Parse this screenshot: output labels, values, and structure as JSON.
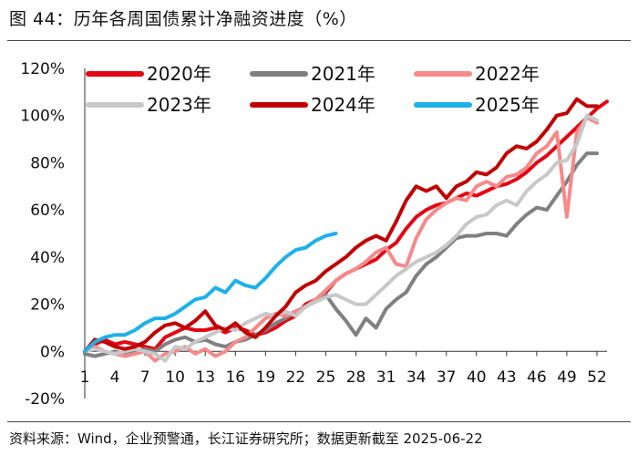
{
  "header": {
    "title": "图 44：历年各周国债累计净融资进度（%）"
  },
  "footer": {
    "source": "资料来源：Wind，企业预警通，长江证券研究所；数据更新截至 2025-06-22"
  },
  "chart_data": {
    "type": "line",
    "title": "历年各周国债累计净融资进度（%）",
    "xlabel": "",
    "ylabel": "",
    "xlim": [
      1,
      53
    ],
    "ylim": [
      -20,
      120
    ],
    "x_ticks": [
      1,
      4,
      7,
      10,
      13,
      16,
      19,
      22,
      25,
      28,
      31,
      34,
      37,
      40,
      43,
      46,
      49,
      52
    ],
    "y_ticks": [
      -20,
      0,
      20,
      40,
      60,
      80,
      100,
      120
    ],
    "y_tick_labels": [
      "-20%",
      "0%",
      "20%",
      "40%",
      "60%",
      "80%",
      "100%",
      "120%"
    ],
    "legend_placement": "top",
    "series": [
      {
        "name": "2020年",
        "color": "#E30613",
        "width": 4,
        "x": [
          1,
          2,
          3,
          4,
          5,
          6,
          7,
          8,
          9,
          10,
          11,
          12,
          13,
          14,
          15,
          16,
          17,
          18,
          19,
          20,
          21,
          22,
          23,
          24,
          25,
          26,
          27,
          28,
          29,
          30,
          31,
          32,
          33,
          34,
          35,
          36,
          37,
          38,
          39,
          40,
          41,
          42,
          43,
          44,
          45,
          46,
          47,
          48,
          49,
          50,
          51,
          52,
          53
        ],
        "values": [
          0,
          3,
          5,
          3,
          4,
          3,
          2,
          1,
          6,
          8,
          10,
          9,
          9,
          10,
          8,
          10,
          9,
          7,
          8,
          10,
          13,
          15,
          20,
          22,
          25,
          30,
          33,
          35,
          37,
          39,
          43,
          46,
          52,
          57,
          60,
          62,
          63,
          65,
          67,
          66,
          68,
          70,
          71,
          73,
          76,
          80,
          83,
          87,
          91,
          95,
          99,
          103,
          106
        ]
      },
      {
        "name": "2021年",
        "color": "#808080",
        "width": 4,
        "x": [
          1,
          2,
          3,
          4,
          5,
          6,
          7,
          8,
          9,
          10,
          11,
          12,
          13,
          14,
          15,
          16,
          17,
          18,
          19,
          20,
          21,
          22,
          23,
          24,
          25,
          26,
          27,
          28,
          29,
          30,
          31,
          32,
          33,
          34,
          35,
          36,
          37,
          38,
          39,
          40,
          41,
          42,
          43,
          44,
          45,
          46,
          47,
          48,
          49,
          50,
          51,
          52
        ],
        "values": [
          -1,
          -2,
          -1,
          0,
          -1,
          0,
          1,
          0,
          3,
          5,
          6,
          4,
          5,
          3,
          2,
          4,
          5,
          7,
          9,
          12,
          14,
          17,
          19,
          22,
          24,
          18,
          13,
          7,
          14,
          10,
          18,
          22,
          25,
          32,
          37,
          40,
          44,
          48,
          49,
          49,
          50,
          50,
          49,
          54,
          58,
          61,
          60,
          66,
          72,
          79,
          84,
          84
        ]
      },
      {
        "name": "2022年",
        "color": "#F58A8A",
        "width": 4,
        "x": [
          1,
          2,
          3,
          4,
          5,
          6,
          7,
          8,
          9,
          10,
          11,
          12,
          13,
          14,
          15,
          16,
          17,
          18,
          19,
          20,
          21,
          22,
          23,
          24,
          25,
          26,
          27,
          28,
          29,
          30,
          31,
          32,
          33,
          34,
          35,
          36,
          37,
          38,
          39,
          40,
          41,
          42,
          43,
          44,
          45,
          46,
          47,
          48,
          49,
          50,
          51,
          52
        ],
        "values": [
          0,
          2,
          0,
          -1,
          -2,
          -1,
          0,
          -4,
          -1,
          0,
          2,
          -1,
          1,
          -2,
          0,
          4,
          6,
          10,
          14,
          16,
          15,
          17,
          19,
          22,
          26,
          30,
          33,
          35,
          38,
          42,
          44,
          37,
          36,
          48,
          56,
          60,
          63,
          65,
          64,
          70,
          72,
          70,
          74,
          75,
          78,
          84,
          87,
          93,
          57,
          93,
          99,
          97
        ]
      },
      {
        "name": "2023年",
        "color": "#C8C8C8",
        "width": 4,
        "x": [
          1,
          2,
          3,
          4,
          5,
          6,
          7,
          8,
          9,
          10,
          11,
          12,
          13,
          14,
          15,
          16,
          17,
          18,
          19,
          20,
          21,
          22,
          23,
          24,
          25,
          26,
          27,
          28,
          29,
          30,
          31,
          32,
          33,
          34,
          35,
          36,
          37,
          38,
          39,
          40,
          41,
          42,
          43,
          44,
          45,
          46,
          47,
          48,
          49,
          50,
          51,
          52
        ],
        "values": [
          0,
          1,
          0,
          -1,
          0,
          1,
          0,
          -1,
          -4,
          2,
          1,
          4,
          6,
          8,
          10,
          9,
          12,
          14,
          16,
          15,
          17,
          15,
          19,
          21,
          23,
          24,
          22,
          20,
          20,
          24,
          28,
          32,
          35,
          38,
          40,
          42,
          45,
          49,
          54,
          57,
          58,
          62,
          64,
          62,
          68,
          72,
          75,
          80,
          81,
          88,
          100,
          98
        ]
      },
      {
        "name": "2024年",
        "color": "#C00000",
        "width": 4,
        "x": [
          1,
          2,
          3,
          4,
          5,
          6,
          7,
          8,
          9,
          10,
          11,
          12,
          13,
          14,
          15,
          16,
          17,
          18,
          19,
          20,
          21,
          22,
          23,
          24,
          25,
          26,
          27,
          28,
          29,
          30,
          31,
          32,
          33,
          34,
          35,
          36,
          37,
          38,
          39,
          40,
          41,
          42,
          43,
          44,
          45,
          46,
          47,
          48,
          49,
          50,
          51,
          52
        ],
        "values": [
          0,
          5,
          4,
          2,
          1,
          2,
          4,
          8,
          11,
          12,
          10,
          13,
          17,
          11,
          9,
          12,
          8,
          6,
          10,
          15,
          19,
          25,
          28,
          30,
          34,
          37,
          40,
          44,
          47,
          49,
          47,
          55,
          64,
          70,
          68,
          70,
          65,
          70,
          72,
          76,
          75,
          78,
          84,
          87,
          86,
          89,
          94,
          100,
          101,
          107,
          104,
          104
        ]
      },
      {
        "name": "2025年",
        "color": "#1FB0E8",
        "width": 4,
        "x": [
          1,
          2,
          3,
          4,
          5,
          6,
          7,
          8,
          9,
          10,
          11,
          12,
          13,
          14,
          15,
          16,
          17,
          18,
          19,
          20,
          21,
          22,
          23,
          24,
          25,
          26
        ],
        "values": [
          0,
          4,
          6,
          7,
          7,
          9,
          12,
          14,
          14,
          16,
          19,
          22,
          23,
          27,
          25,
          30,
          28,
          27,
          31,
          36,
          40,
          43,
          44,
          47,
          49,
          50
        ]
      }
    ]
  }
}
